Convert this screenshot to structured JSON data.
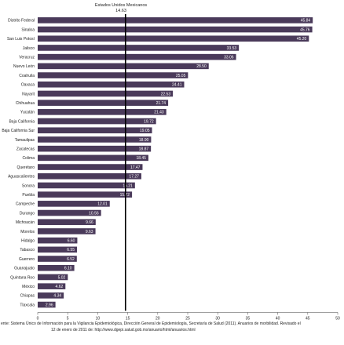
{
  "chart_data": {
    "type": "bar",
    "orientation": "horizontal",
    "categories": [
      "Distrito Federal",
      "Sinaloa",
      "San Luis Potosí",
      "Jalisco",
      "Veracruz",
      "Nuevo León",
      "Coahuila",
      "Oaxaca",
      "Nayarit",
      "Chihuahua",
      "Yucatán",
      "Baja California",
      "Baja California Sur",
      "Tamaulipas",
      "Zacatecas",
      "Colima",
      "Querétaro",
      "Aguascalientes",
      "Sonora",
      "Puebla",
      "Campeche",
      "Durango",
      "Michoacán",
      "Morelos",
      "Hidalgo",
      "Tabasco",
      "Guerrero",
      "Guanajuato",
      "Quintana Roo",
      "México",
      "Chiapas",
      "Tlaxcala"
    ],
    "values": [
      45.84,
      45.76,
      45.2,
      33.53,
      33.06,
      28.5,
      25.05,
      24.41,
      22.53,
      21.74,
      21.43,
      19.72,
      19.05,
      18.9,
      18.87,
      18.45,
      17.47,
      17.27,
      16.21,
      15.72,
      12.01,
      10.56,
      9.66,
      9.63,
      6.6,
      6.55,
      6.52,
      6.1,
      5.02,
      4.62,
      4.34,
      2.96
    ],
    "value_labels": [
      "45.84",
      "45.76",
      "45.20",
      "33.53",
      "33.06",
      "28.50",
      "25.05",
      "24.41",
      "22.53",
      "21.74",
      "21.43",
      "19.72",
      "19.05",
      "18.90",
      "18.87",
      "18.45",
      "17.47",
      "17.27",
      "16.21",
      "15.72",
      "12.01",
      "10.56",
      "9.66",
      "9.63",
      "6.60",
      "6.55",
      "6.52",
      "6.10",
      "5.02",
      "4.62",
      "4.34",
      "2.96"
    ],
    "reference_line": {
      "label": "Estados Unidos Mexicanos",
      "value_label": "14.63",
      "value": 14.63
    },
    "xlim": [
      0,
      50
    ],
    "xticks": [
      0,
      5,
      10,
      15,
      20,
      25,
      30,
      35,
      40,
      45,
      50
    ],
    "title": "",
    "xlabel": "",
    "ylabel": "",
    "grid": false,
    "legend": "none",
    "bar_color": "#4a3a5a",
    "source_note": [
      "ente:   Sistema Único de Información para la Vigilancia Epidemiológica, Dirección General de Epidemiología, Secretaría de Salud (2011). Anuarios de morbilidad. Revisado el",
      "12 de enero de 2011 de: http://www.dgepi.salud.gob.mx/anuario/html/anuarios.html"
    ]
  }
}
